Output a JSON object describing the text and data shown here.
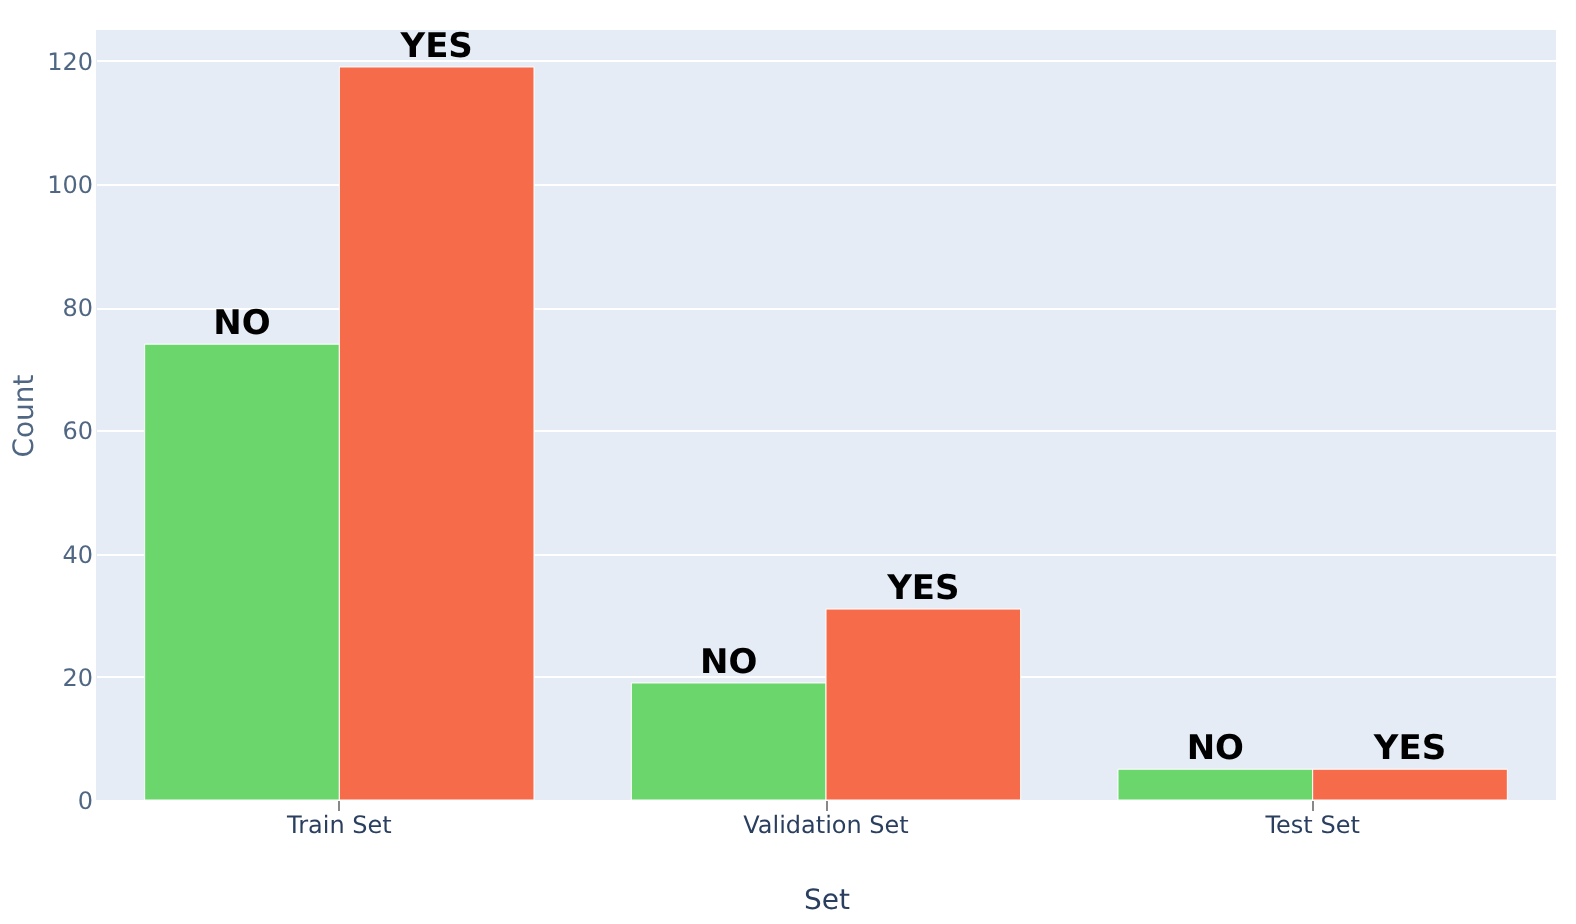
{
  "chart_data": {
    "type": "bar",
    "xlabel": "Set",
    "ylabel": "Count",
    "categories": [
      "Train Set",
      "Validation Set",
      "Test Set"
    ],
    "series": [
      {
        "name": "NO",
        "color": "#6ad66c",
        "values": [
          74,
          19,
          5
        ]
      },
      {
        "name": "YES",
        "color": "#f66c4a",
        "values": [
          119,
          31,
          5
        ]
      }
    ],
    "ylim": [
      0,
      125
    ],
    "yticks": [
      0,
      20,
      40,
      60,
      80,
      100,
      120
    ],
    "grid": "y",
    "legend": false
  }
}
